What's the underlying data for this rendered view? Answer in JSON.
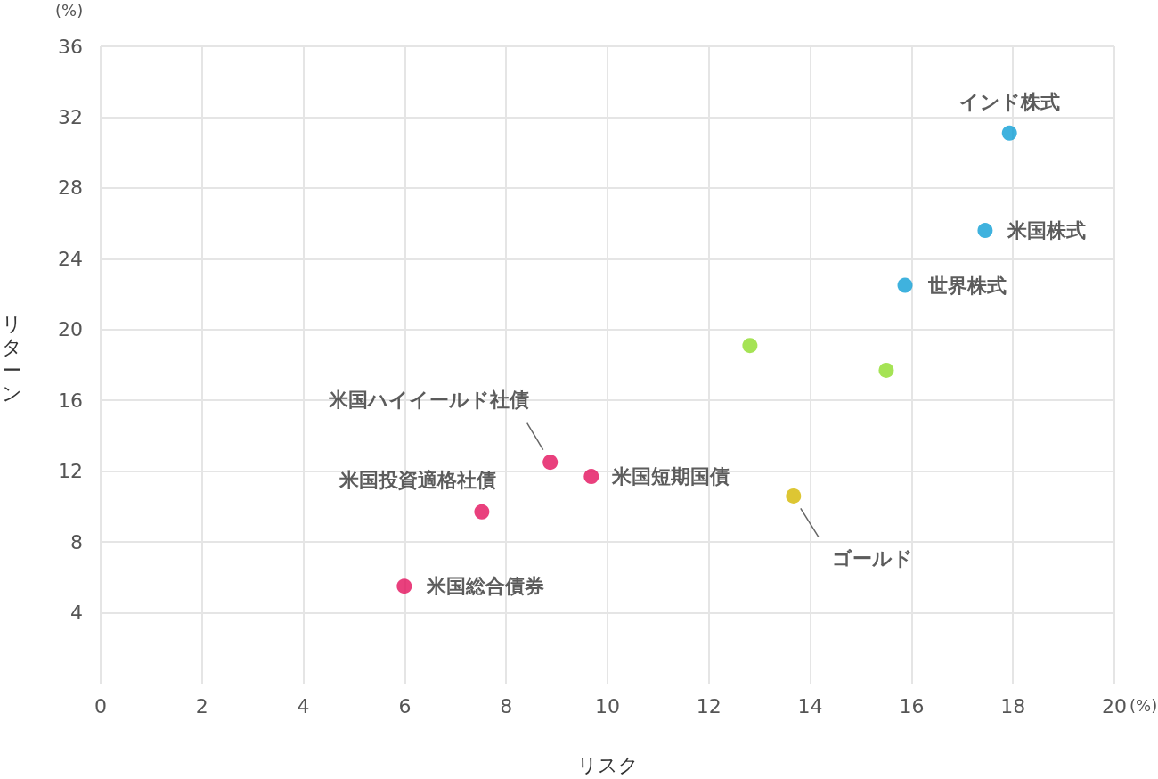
{
  "chart_data": {
    "type": "scatter",
    "xlabel": "リスク",
    "ylabel": "リターン",
    "annotations": [
      "(%)",
      "(%)"
    ],
    "xlim": [
      0,
      20
    ],
    "xticks": [
      0,
      2,
      4,
      6,
      8,
      10,
      12,
      14,
      16,
      18,
      20
    ],
    "ylim": [
      0,
      36
    ],
    "yticks": [
      4,
      8,
      12,
      16,
      20,
      24,
      28,
      32,
      36
    ],
    "grid": true,
    "legend": false,
    "marker": "circle",
    "series": [
      {
        "name": "インド株式",
        "color": "#0f9fd6",
        "x": [
          17.93
        ],
        "values": [
          31.1
        ]
      },
      {
        "name": "米国株式",
        "color": "#0f9fd6",
        "x": [
          17.45
        ],
        "values": [
          25.6
        ]
      },
      {
        "name": "世界株式",
        "color": "#0f9fd6",
        "x": [
          15.87
        ],
        "values": [
          22.5
        ]
      },
      {
        "color": "#8fdc2a",
        "x": [
          12.81
        ],
        "values": [
          19.1
        ]
      },
      {
        "color": "#8fdc2a",
        "x": [
          15.5
        ],
        "values": [
          17.7
        ]
      },
      {
        "name": "米国ハイイールド社債",
        "color": "#e3105c",
        "x": [
          8.87
        ],
        "values": [
          12.5
        ]
      },
      {
        "name": "米国短期国債",
        "color": "#e3105c",
        "x": [
          9.68
        ],
        "values": [
          11.7
        ]
      },
      {
        "name": "ゴールド",
        "color": "#d4b800",
        "x": [
          13.67
        ],
        "values": [
          10.6
        ]
      },
      {
        "name": "米国投資適格社債",
        "color": "#e3105c",
        "x": [
          7.52
        ],
        "values": [
          9.7
        ]
      },
      {
        "name": "米国総合債券",
        "color": "#e3105c",
        "x": [
          5.99
        ],
        "values": [
          5.5
        ]
      }
    ]
  }
}
